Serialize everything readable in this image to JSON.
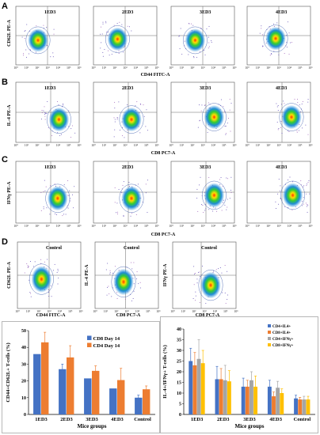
{
  "panels": {
    "A": {
      "letter": "A",
      "ylabel": "CD62L PE-A",
      "xlabel": "CD44 FITC-A",
      "tags": [
        "1ED3",
        "2ED3",
        "3ED3",
        "4ED3"
      ]
    },
    "B": {
      "letter": "B",
      "ylabel": "IL-4 PE-A",
      "xlabel": "CD8 PC7-A",
      "tags": [
        "1ED3",
        "2ED3",
        "3ED3",
        "4ED3"
      ]
    },
    "C": {
      "letter": "C",
      "ylabel": "IFNγ PE-A",
      "xlabel": "CD8 PC7-A",
      "tags": [
        "1ED3",
        "2ED3",
        "3ED3",
        "4ED3"
      ]
    },
    "D": {
      "letter": "D",
      "plots": [
        {
          "ylabel": "CD62L PE-A",
          "xlabel": "CD44 FITC-A",
          "tag": "Control"
        },
        {
          "ylabel": "IL-4 PE-A",
          "xlabel": "CD8 PC7-A",
          "tag": "Control"
        },
        {
          "ylabel": "IFNγ PE-A",
          "xlabel": "CD8 PC7-A",
          "tag": "Control"
        }
      ]
    },
    "E": {
      "letter": "E"
    },
    "F": {
      "letter": "F"
    }
  },
  "tick_labels": {
    "flow_axis": [
      "10⁰",
      "10¹",
      "10²",
      "10³",
      "10⁴",
      "10⁵",
      "10⁶"
    ]
  },
  "chart_data": [
    {
      "type": "bar",
      "panel": "E",
      "ylabel": "CD44+CD62L+ T-cells (%)",
      "xlabel": "Mice groups",
      "categories": [
        "1ED3",
        "2ED3",
        "3ED3",
        "4ED3",
        "Control"
      ],
      "ylim": [
        0,
        50
      ],
      "yticks": [
        "0",
        "10",
        "20",
        "30",
        "40",
        "50"
      ],
      "legend_position": "top-right",
      "series": [
        {
          "name": "CD8 Day 14",
          "color": "#4472c4",
          "values": [
            36,
            27,
            21.5,
            15.5,
            10
          ],
          "errors": [
            0,
            3,
            0,
            0,
            1.5
          ]
        },
        {
          "name": "CD4 Day 14",
          "color": "#ed7d31",
          "values": [
            43,
            34,
            26,
            20.5,
            15
          ],
          "errors": [
            6,
            7,
            3,
            7,
            2
          ]
        }
      ]
    },
    {
      "type": "bar",
      "panel": "F",
      "ylabel": "IL-4+/IFNγ+ T-cells (%)",
      "xlabel": "Mice groups",
      "categories": [
        "1ED3",
        "2ED3",
        "3ED3",
        "4ED3",
        "Control"
      ],
      "ylim": [
        0,
        40
      ],
      "yticks": [
        "0",
        "5",
        "10",
        "15",
        "20",
        "25",
        "30",
        "35",
        "40"
      ],
      "legend_position": "top-right",
      "series": [
        {
          "name": "CD4+IL4+",
          "color": "#4472c4",
          "values": [
            25,
            16.5,
            13,
            13,
            7.5
          ],
          "errors": [
            6,
            6,
            4,
            3,
            1.5
          ]
        },
        {
          "name": "CD8+IL4+",
          "color": "#ed7d31",
          "values": [
            23,
            16.5,
            13,
            8.5,
            7
          ],
          "errors": [
            6,
            5,
            3,
            2,
            1
          ]
        },
        {
          "name": "CD4+IFNγ+",
          "color": "#a5a5a5",
          "values": [
            26,
            16,
            16,
            12.5,
            7
          ],
          "errors": [
            9,
            7,
            4,
            3,
            1.5
          ]
        },
        {
          "name": "CD8+IFNγ+",
          "color": "#ffc000",
          "values": [
            24,
            15.5,
            13,
            10,
            7
          ],
          "errors": [
            6,
            5,
            5,
            2,
            1.5
          ]
        }
      ]
    }
  ]
}
